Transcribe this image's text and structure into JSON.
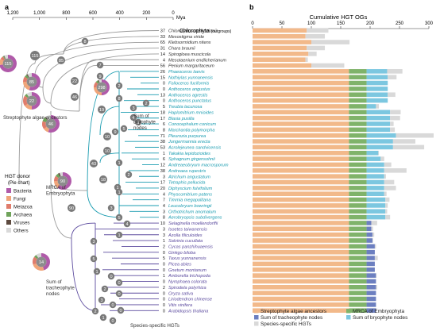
{
  "panels": {
    "a": "a",
    "b": "b"
  },
  "time_axis": {
    "ticks": [
      "1,200",
      "1,000",
      "800",
      "600",
      "400",
      "200",
      "0"
    ],
    "unit": "Mya"
  },
  "group_labels": {
    "outgroup": "Chlorophyta",
    "outgroup_note": "(outgroups)",
    "streptophyte": "Streptophyte algae ancestors",
    "bryophyte": "Sum of Bryophyte nodes",
    "embryophyta": "MRCA of Embryophyta",
    "tracheophyte": "Sum of tracheophyte nodes",
    "species_specific": "Species-specific HGTs"
  },
  "legend_a": {
    "title": "HGT donor",
    "subtitle": "(Pie chart)",
    "items": [
      {
        "label": "Bacteria",
        "color": "#b05aa9"
      },
      {
        "label": "Fungi",
        "color": "#f0a57a"
      },
      {
        "label": "Metazoa",
        "color": "#e07c6b"
      },
      {
        "label": "Archaea",
        "color": "#6fa35a"
      },
      {
        "label": "Viruses",
        "color": "#5d4a3f"
      },
      {
        "label": "Others",
        "color": "#d9d9d9"
      }
    ]
  },
  "pies": [
    {
      "value": "115"
    },
    {
      "value": "85"
    },
    {
      "value": "22"
    },
    {
      "value": "46"
    },
    {
      "value": "298"
    },
    {
      "value": "90"
    },
    {
      "value": "14"
    }
  ],
  "internal_nodes": [
    "8",
    "115",
    "85",
    "22",
    "46",
    "7",
    "9",
    "2",
    "8",
    "3",
    "4",
    "2",
    "1",
    "10",
    "9",
    "5",
    "19",
    "43",
    "10",
    "1",
    "2",
    "1",
    "18",
    "1",
    "3",
    "5",
    "4",
    "1",
    "90",
    "3",
    "5",
    "1",
    "0",
    "0",
    "2",
    "0",
    "3",
    "0",
    "0",
    "2",
    "1",
    "0"
  ],
  "species": [
    {
      "name": "Chlorokybus melkonianii",
      "count": "37",
      "group": "chl"
    },
    {
      "name": "Mesostigma viride",
      "count": "33",
      "group": "chl"
    },
    {
      "name": "Klebsormidium nitens",
      "count": "65",
      "group": "chl"
    },
    {
      "name": "Chara braunii",
      "count": "31",
      "group": "chl"
    },
    {
      "name": "Spirogloea muscicola",
      "count": "14",
      "group": "chl"
    },
    {
      "name": "Mesotaenium endlicherianum",
      "count": "4",
      "group": "chl"
    },
    {
      "name": "Penium margaritaceum",
      "count": "56",
      "group": "chl"
    },
    {
      "name": "Phaeoceros laevis",
      "count": "26",
      "group": "bry"
    },
    {
      "name": "Nothiylas yunnanensis",
      "count": "15",
      "group": "bry"
    },
    {
      "name": "Folioceros fuciformis",
      "count": "0",
      "group": "bry"
    },
    {
      "name": "Anthoceros angustus",
      "count": "0",
      "group": "bry"
    },
    {
      "name": "Anthoceros agrestis",
      "count": "13",
      "group": "bry"
    },
    {
      "name": "Anthoceros punctatus",
      "count": "0",
      "group": "bry"
    },
    {
      "name": "Treubia lacunosa",
      "count": "5",
      "group": "bry"
    },
    {
      "name": "Haplomitrium mnioides",
      "count": "18",
      "group": "bry"
    },
    {
      "name": "Blasia pusilla",
      "count": "17",
      "group": "bry"
    },
    {
      "name": "Conocephalum conicum",
      "count": "6",
      "group": "bry"
    },
    {
      "name": "Marchantia polymorpha",
      "count": "8",
      "group": "bry"
    },
    {
      "name": "Pleurozia purpurea",
      "count": "71",
      "group": "bry"
    },
    {
      "name": "Jungermannia erecta",
      "count": "38",
      "group": "bry"
    },
    {
      "name": "Acrolejeunea sandvicensis",
      "count": "53",
      "group": "bry"
    },
    {
      "name": "Takakia lepidozioides",
      "count": "1",
      "group": "bry"
    },
    {
      "name": "Sphagnum girgensohnii",
      "count": "6",
      "group": "bry"
    },
    {
      "name": "Andreaeobryum macrosporum",
      "count": "12",
      "group": "bry"
    },
    {
      "name": "Andreaea rupestris",
      "count": "38",
      "group": "bry"
    },
    {
      "name": "Atrichum angustatum",
      "count": "3",
      "group": "bry"
    },
    {
      "name": "Tetraphis pellucida",
      "count": "17",
      "group": "bry"
    },
    {
      "name": "Diphyscium fulvifolium",
      "count": "20",
      "group": "bry"
    },
    {
      "name": "Physcomitrium patens",
      "count": "4",
      "group": "bry"
    },
    {
      "name": "Timmia megapolitana",
      "count": "7",
      "group": "bry"
    },
    {
      "name": "Leucobryum bowringii",
      "count": "4",
      "group": "bry"
    },
    {
      "name": "Orthotrichum anomalum",
      "count": "3",
      "group": "bry"
    },
    {
      "name": "Aerobryopsis subdivergens",
      "count": "8",
      "group": "bry"
    },
    {
      "name": "Selaginella moellendorffii",
      "count": "10",
      "group": "tra"
    },
    {
      "name": "Isoetes taiwanensis",
      "count": "3",
      "group": "tra"
    },
    {
      "name": "Azolla filiculoides",
      "count": "3",
      "group": "tra"
    },
    {
      "name": "Salvinia cucullata",
      "count": "1",
      "group": "tra"
    },
    {
      "name": "Cycas panzhihuaensis",
      "count": "2",
      "group": "tra"
    },
    {
      "name": "Ginkgo biloba",
      "count": "0",
      "group": "tra"
    },
    {
      "name": "Taxus yunnanensis",
      "count": "5",
      "group": "tra"
    },
    {
      "name": "Picea abies",
      "count": "0",
      "group": "tra"
    },
    {
      "name": "Gnetum montanum",
      "count": "0",
      "group": "tra"
    },
    {
      "name": "Amborella trichopoda",
      "count": "1",
      "group": "tra"
    },
    {
      "name": "Nymphaea colorata",
      "count": "0",
      "group": "tra"
    },
    {
      "name": "Spirodela polyrhiza",
      "count": "2",
      "group": "tra"
    },
    {
      "name": "Oryza sativa",
      "count": "0",
      "group": "tra"
    },
    {
      "name": "Liriodendron chinense",
      "count": "0",
      "group": "tra"
    },
    {
      "name": "Vitis vinifera",
      "count": "0",
      "group": "tra"
    },
    {
      "name": "Arabidopsis thaliana",
      "count": "0",
      "group": "tra"
    }
  ],
  "colors": {
    "chl": "#333333",
    "bry": "#1a9cb0",
    "tra": "#5b4a9e",
    "node": "#7a7a7a",
    "strep_ancestors": "#f2b98a",
    "mrca_embryophyta": "#7fb36a",
    "tracheophyte_nodes": "#6c7fc0",
    "bryophyte_nodes": "#7cc7e0",
    "species_specific": "#d9d9d9"
  },
  "chart_data": {
    "type": "bar",
    "title": "Cumulative HGT OGs",
    "xlim": [
      0,
      300
    ],
    "ticks": [
      "0",
      "50",
      "100",
      "150",
      "200",
      "250",
      "300"
    ],
    "stacked": true,
    "horizontal": true,
    "categories": [
      "Chlorokybus melkonianii",
      "Mesostigma viride",
      "Klebsormidium nitens",
      "Chara braunii",
      "Spirogloea muscicola",
      "Mesotaenium endlicherianum",
      "Penium margaritaceum",
      "Phaeoceros laevis",
      "Nothiylas yunnanensis",
      "Folioceros fuciformis",
      "Anthoceros angustus",
      "Anthoceros agrestis",
      "Anthoceros punctatus",
      "Treubia lacunosa",
      "Haplomitrium mnioides",
      "Blasia pusilla",
      "Conocephalum conicum",
      "Marchantia polymorpha",
      "Pleurozia purpurea",
      "Jungermannia erecta",
      "Acrolejeunea sandvicensis",
      "Takakia lepidozioides",
      "Sphagnum girgensohnii",
      "Andreaeobryum macrosporum",
      "Andreaea rupestris",
      "Atrichum angustatum",
      "Tetraphis pellucida",
      "Diphyscium fulvifolium",
      "Physcomitrium patens",
      "Timmia megapolitana",
      "Leucobryum bowringii",
      "Orthotrichum anomalum",
      "Aerobryopsis subdivergens",
      "Selaginella moellendorffii",
      "Isoetes taiwanensis",
      "Azolla filiculoides",
      "Salvinia cucullata",
      "Cycas panzhihuaensis",
      "Ginkgo biloba",
      "Taxus yunnanensis",
      "Picea abies",
      "Gnetum montanum",
      "Amborella trichopoda",
      "Nymphaea colorata",
      "Spirodela polyrhiza",
      "Oryza sativa",
      "Liriodendron chinense",
      "Vitis vinifera",
      "Arabidopsis thaliana"
    ],
    "series": [
      {
        "name": "Streptophyte algae ancestors",
        "color": "#f2b98a",
        "values": [
          0,
          0,
          0,
          0,
          0,
          0,
          0,
          164,
          164,
          164,
          164,
          164,
          164,
          164,
          164,
          164,
          164,
          164,
          164,
          164,
          164,
          164,
          164,
          164,
          164,
          164,
          164,
          164,
          164,
          164,
          164,
          164,
          164,
          164,
          164,
          164,
          164,
          164,
          164,
          164,
          164,
          164,
          164,
          164,
          164,
          164,
          164,
          164,
          164
        ]
      },
      {
        "name": "MRCA of Embryophyta",
        "color": "#7fb36a",
        "values": [
          0,
          0,
          0,
          0,
          0,
          0,
          0,
          30,
          30,
          30,
          30,
          30,
          30,
          30,
          30,
          30,
          30,
          30,
          30,
          30,
          30,
          30,
          30,
          30,
          30,
          30,
          30,
          30,
          30,
          30,
          30,
          30,
          30,
          30,
          30,
          30,
          30,
          30,
          30,
          30,
          30,
          30,
          30,
          30,
          30,
          30,
          30,
          30,
          30
        ]
      },
      {
        "name": "Sum of tracheophyte nodes",
        "color": "#6c7fc0",
        "values": [
          0,
          0,
          0,
          0,
          0,
          0,
          0,
          0,
          0,
          0,
          0,
          0,
          0,
          0,
          0,
          0,
          0,
          0,
          0,
          0,
          0,
          0,
          0,
          0,
          0,
          0,
          0,
          0,
          0,
          0,
          0,
          0,
          0,
          8,
          8,
          10,
          10,
          14,
          14,
          14,
          14,
          14,
          16,
          16,
          16,
          16,
          16,
          16,
          16
        ]
      },
      {
        "name": "Sum of bryophyte nodes",
        "color": "#7cc7e0",
        "values": [
          0,
          0,
          0,
          0,
          0,
          0,
          0,
          35,
          36,
          36,
          36,
          36,
          36,
          16,
          40,
          40,
          40,
          40,
          50,
          45,
          45,
          20,
          24,
          30,
          30,
          30,
          30,
          30,
          30,
          32,
          32,
          32,
          32,
          0,
          0,
          0,
          0,
          0,
          0,
          0,
          0,
          0,
          0,
          0,
          0,
          0,
          0,
          0,
          0
        ]
      },
      {
        "name": "Species-specific HGTs",
        "color": "#d9d9d9",
        "values": [
          37,
          33,
          65,
          31,
          14,
          4,
          56,
          26,
          15,
          0,
          0,
          13,
          0,
          5,
          18,
          17,
          6,
          8,
          71,
          38,
          53,
          1,
          6,
          12,
          38,
          3,
          17,
          20,
          4,
          7,
          4,
          3,
          8,
          10,
          3,
          3,
          1,
          2,
          0,
          5,
          0,
          0,
          1,
          0,
          2,
          0,
          0,
          0,
          0
        ]
      }
    ],
    "base": [
      92,
      90,
      100,
      92,
      95,
      90,
      100,
      0,
      0,
      0,
      0,
      0,
      0,
      0,
      0,
      0,
      0,
      0,
      0,
      0,
      0,
      0,
      0,
      0,
      0,
      0,
      0,
      0,
      0,
      0,
      0,
      0,
      0,
      0,
      0,
      0,
      0,
      0,
      0,
      0,
      0,
      0,
      0,
      0,
      0,
      0,
      0,
      0,
      0
    ],
    "legend": [
      {
        "label": "Streptophyte algae ancestors",
        "color": "#f2b98a"
      },
      {
        "label": "MRCA of Embryophyta",
        "color": "#7fb36a"
      },
      {
        "label": "Sum of tracheophyte nodes",
        "color": "#6c7fc0"
      },
      {
        "label": "Sum of bryophyte nodes",
        "color": "#7cc7e0"
      },
      {
        "label": "Species-specific HGTs",
        "color": "#d9d9d9"
      }
    ]
  }
}
